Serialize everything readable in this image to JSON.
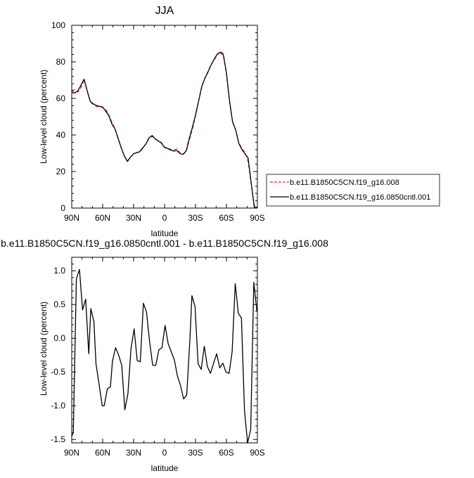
{
  "chart_data": [
    {
      "type": "line",
      "title": "JJA",
      "xlabel": "latitude",
      "ylabel": "Low-level cloud (percent)",
      "xlim": [
        90,
        -90
      ],
      "ylim": [
        0,
        100
      ],
      "x_ticks": [
        90,
        60,
        30,
        0,
        -30,
        -60,
        -90
      ],
      "x_tick_labels": [
        "90N",
        "60N",
        "30N",
        "0",
        "30S",
        "60S",
        "90S"
      ],
      "y_ticks": [
        0,
        20,
        40,
        60,
        80,
        100
      ],
      "y_tick_labels": [
        "0",
        "20",
        "40",
        "60",
        "80",
        "100"
      ],
      "grid": false,
      "legend_position": "right",
      "series": [
        {
          "name": "b.e11.B1850C5CN.f19_g16.008",
          "color": "#e8282a",
          "dash": "dashed",
          "x": [
            90,
            87,
            84,
            81,
            78,
            75,
            72,
            69,
            66,
            63,
            60,
            57,
            54,
            51,
            48,
            45,
            42,
            39,
            36,
            33,
            30,
            27,
            24,
            21,
            18,
            15,
            12,
            9,
            6,
            3,
            0,
            -3,
            -6,
            -9,
            -12,
            -15,
            -18,
            -21,
            -24,
            -27,
            -30,
            -33,
            -36,
            -39,
            -42,
            -45,
            -48,
            -51,
            -54,
            -57,
            -60,
            -63,
            -66,
            -69,
            -72,
            -75,
            -78,
            -81,
            -84,
            -87,
            -90
          ],
          "y": [
            64.3,
            64.8,
            63.5,
            65.9,
            70.3,
            64.2,
            58.1,
            56.6,
            55.6,
            55.3,
            55.1,
            54.0,
            50.9,
            46.8,
            43.5,
            38.3,
            32.8,
            28.5,
            25.9,
            27.8,
            29.6,
            30.3,
            31.1,
            33.1,
            35.0,
            38.3,
            39.2,
            37.7,
            36.9,
            35.8,
            33.4,
            32.8,
            32.1,
            31.8,
            32.4,
            30.1,
            29.5,
            31.0,
            37.2,
            43.2,
            50.4,
            58.5,
            66.0,
            71.2,
            74.6,
            78.4,
            81.0,
            83.8,
            85.9,
            84.4,
            73.4,
            58.1,
            47.1,
            42.6,
            35.6,
            32.5,
            30.4,
            25.6,
            13.2,
            1.1,
            1.1
          ]
        },
        {
          "name": "b.e11.B1850C5CN.f19_g16.0850cntl.001",
          "color": "#000000",
          "dash": "solid",
          "x": [
            90,
            87,
            84,
            81,
            78,
            75,
            72,
            69,
            66,
            63,
            60,
            57,
            54,
            51,
            48,
            45,
            42,
            39,
            36,
            33,
            30,
            27,
            24,
            21,
            18,
            15,
            12,
            9,
            6,
            3,
            0,
            -3,
            -6,
            -9,
            -12,
            -15,
            -18,
            -21,
            -24,
            -27,
            -30,
            -33,
            -36,
            -39,
            -42,
            -45,
            -48,
            -51,
            -54,
            -57,
            -60,
            -63,
            -66,
            -69,
            -72,
            -75,
            -78,
            -81,
            -84,
            -87,
            -90
          ],
          "y": [
            63.2,
            63.0,
            64.2,
            67.3,
            70.5,
            64.1,
            58.3,
            57.0,
            56.1,
            55.7,
            55.3,
            53.0,
            50.5,
            46.0,
            43.2,
            38.0,
            33.0,
            28.5,
            25.5,
            27.9,
            29.8,
            30.3,
            30.8,
            33.0,
            35.2,
            38.5,
            39.7,
            37.8,
            36.7,
            35.5,
            33.2,
            32.6,
            31.7,
            31.2,
            31.5,
            29.8,
            29.4,
            31.4,
            38.2,
            44.2,
            50.9,
            58.6,
            66.4,
            70.9,
            74.3,
            78.2,
            81.4,
            84.2,
            85.2,
            83.8,
            74.0,
            58.6,
            47.0,
            42.7,
            35.4,
            32.0,
            29.7,
            27.4,
            13.7,
            0.4,
            0.4
          ]
        }
      ]
    },
    {
      "type": "line",
      "title": "b.e11.B1850C5CN.f19_g16.0850cntl.001 - b.e11.B1850C5CN.f19_g16.008",
      "xlabel": "latitude",
      "ylabel": "Low-level cloud (percent)",
      "xlim": [
        90,
        -90
      ],
      "ylim": [
        -1.55,
        1.2
      ],
      "x_ticks": [
        90,
        60,
        30,
        0,
        -30,
        -60,
        -90
      ],
      "x_tick_labels": [
        "90N",
        "60N",
        "30N",
        "0",
        "30S",
        "60S",
        "90S"
      ],
      "y_ticks": [
        -1.5,
        -1.0,
        -0.5,
        0.0,
        0.5,
        1.0
      ],
      "y_tick_labels": [
        "-1.5",
        "-1.0",
        "-0.5",
        "0.0",
        "0.5",
        "1.0"
      ],
      "grid": false,
      "series": [
        {
          "color": "#000000",
          "dash": "solid",
          "x": [
            90,
            88.5,
            85.5,
            82.5,
            79.5,
            76.5,
            73.5,
            71.5,
            68.5,
            66.5,
            63.5,
            60.5,
            58.5,
            55.5,
            52.5,
            50.5,
            47.5,
            44.5,
            41.5,
            38.5,
            35.5,
            32.5,
            29.5,
            26.5,
            23.5,
            20.5,
            17.5,
            14.5,
            11.5,
            8.5,
            5.5,
            2.5,
            -0.5,
            -3.5,
            -6.5,
            -9.5,
            -12.5,
            -15.5,
            -18.5,
            -21.5,
            -24.5,
            -26.5,
            -29.5,
            -32.5,
            -35.5,
            -38.5,
            -41.5,
            -44.5,
            -47.5,
            -50.5,
            -53.5,
            -56.5,
            -59.5,
            -62.5,
            -65.5,
            -68.5,
            -71.5,
            -74.5,
            -77.5,
            -80.5,
            -83.5,
            -86.5,
            -89.5
          ],
          "y": [
            -1.45,
            -1.4,
            0.88,
            1.02,
            0.42,
            0.58,
            -0.23,
            0.44,
            0.25,
            -0.38,
            -0.68,
            -1.0,
            -1.0,
            -0.75,
            -0.72,
            -0.34,
            -0.14,
            -0.25,
            -0.4,
            -1.06,
            -0.82,
            -0.15,
            0.14,
            -0.33,
            -0.35,
            0.52,
            0.39,
            -0.05,
            -0.4,
            -0.4,
            -0.17,
            -0.14,
            0.19,
            -0.08,
            -0.2,
            -0.32,
            -0.56,
            -0.7,
            -0.9,
            -0.84,
            -0.05,
            0.63,
            0.47,
            -0.38,
            -0.46,
            -0.12,
            -0.42,
            -0.52,
            -0.37,
            -0.23,
            -0.44,
            -0.37,
            -0.5,
            -0.52,
            -0.2,
            0.81,
            0.37,
            0.3,
            -1.08,
            -1.55,
            -1.35,
            0.83,
            0.4
          ]
        }
      ]
    }
  ],
  "legend": {
    "entries": [
      "b.e11.B1850C5CN.f19_g16.008",
      "b.e11.B1850C5CN.f19_g16.0850cntl.001"
    ]
  }
}
